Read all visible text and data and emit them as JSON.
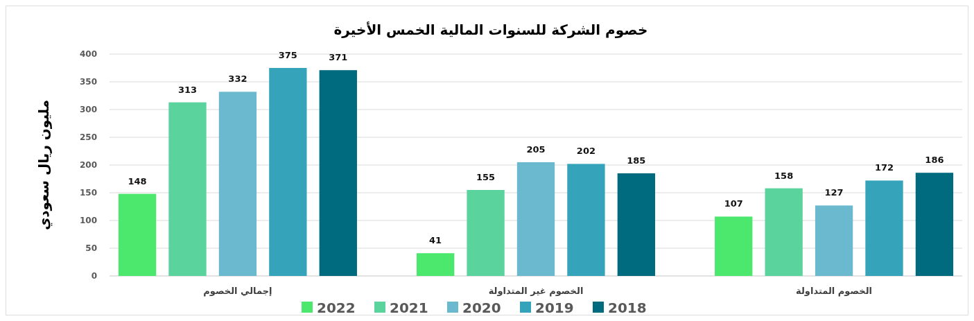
{
  "chart_data": {
    "type": "bar",
    "title": "خصوم الشركة للسنوات المالية الخمس الأخيرة",
    "ylabel": "مليون ريال سعودي",
    "categories": [
      "إجمالي الخصوم",
      "الخصوم غير المتداولة",
      "الخصوم المتداولة"
    ],
    "series": [
      {
        "name": "2022",
        "color": "#4ce86e",
        "values": [
          148,
          41,
          107
        ]
      },
      {
        "name": "2021",
        "color": "#5bd39c",
        "values": [
          313,
          155,
          158
        ]
      },
      {
        "name": "2020",
        "color": "#6bb9ce",
        "values": [
          332,
          205,
          127
        ]
      },
      {
        "name": "2019",
        "color": "#35a4bb",
        "values": [
          375,
          202,
          172
        ]
      },
      {
        "name": "2018",
        "color": "#006a7e",
        "values": [
          371,
          185,
          186
        ]
      }
    ],
    "ylim": [
      0,
      400
    ],
    "yticks": [
      0,
      50,
      100,
      150,
      200,
      250,
      300,
      350,
      400
    ],
    "grid": "y",
    "legend": "bottom",
    "data_labels": true
  }
}
